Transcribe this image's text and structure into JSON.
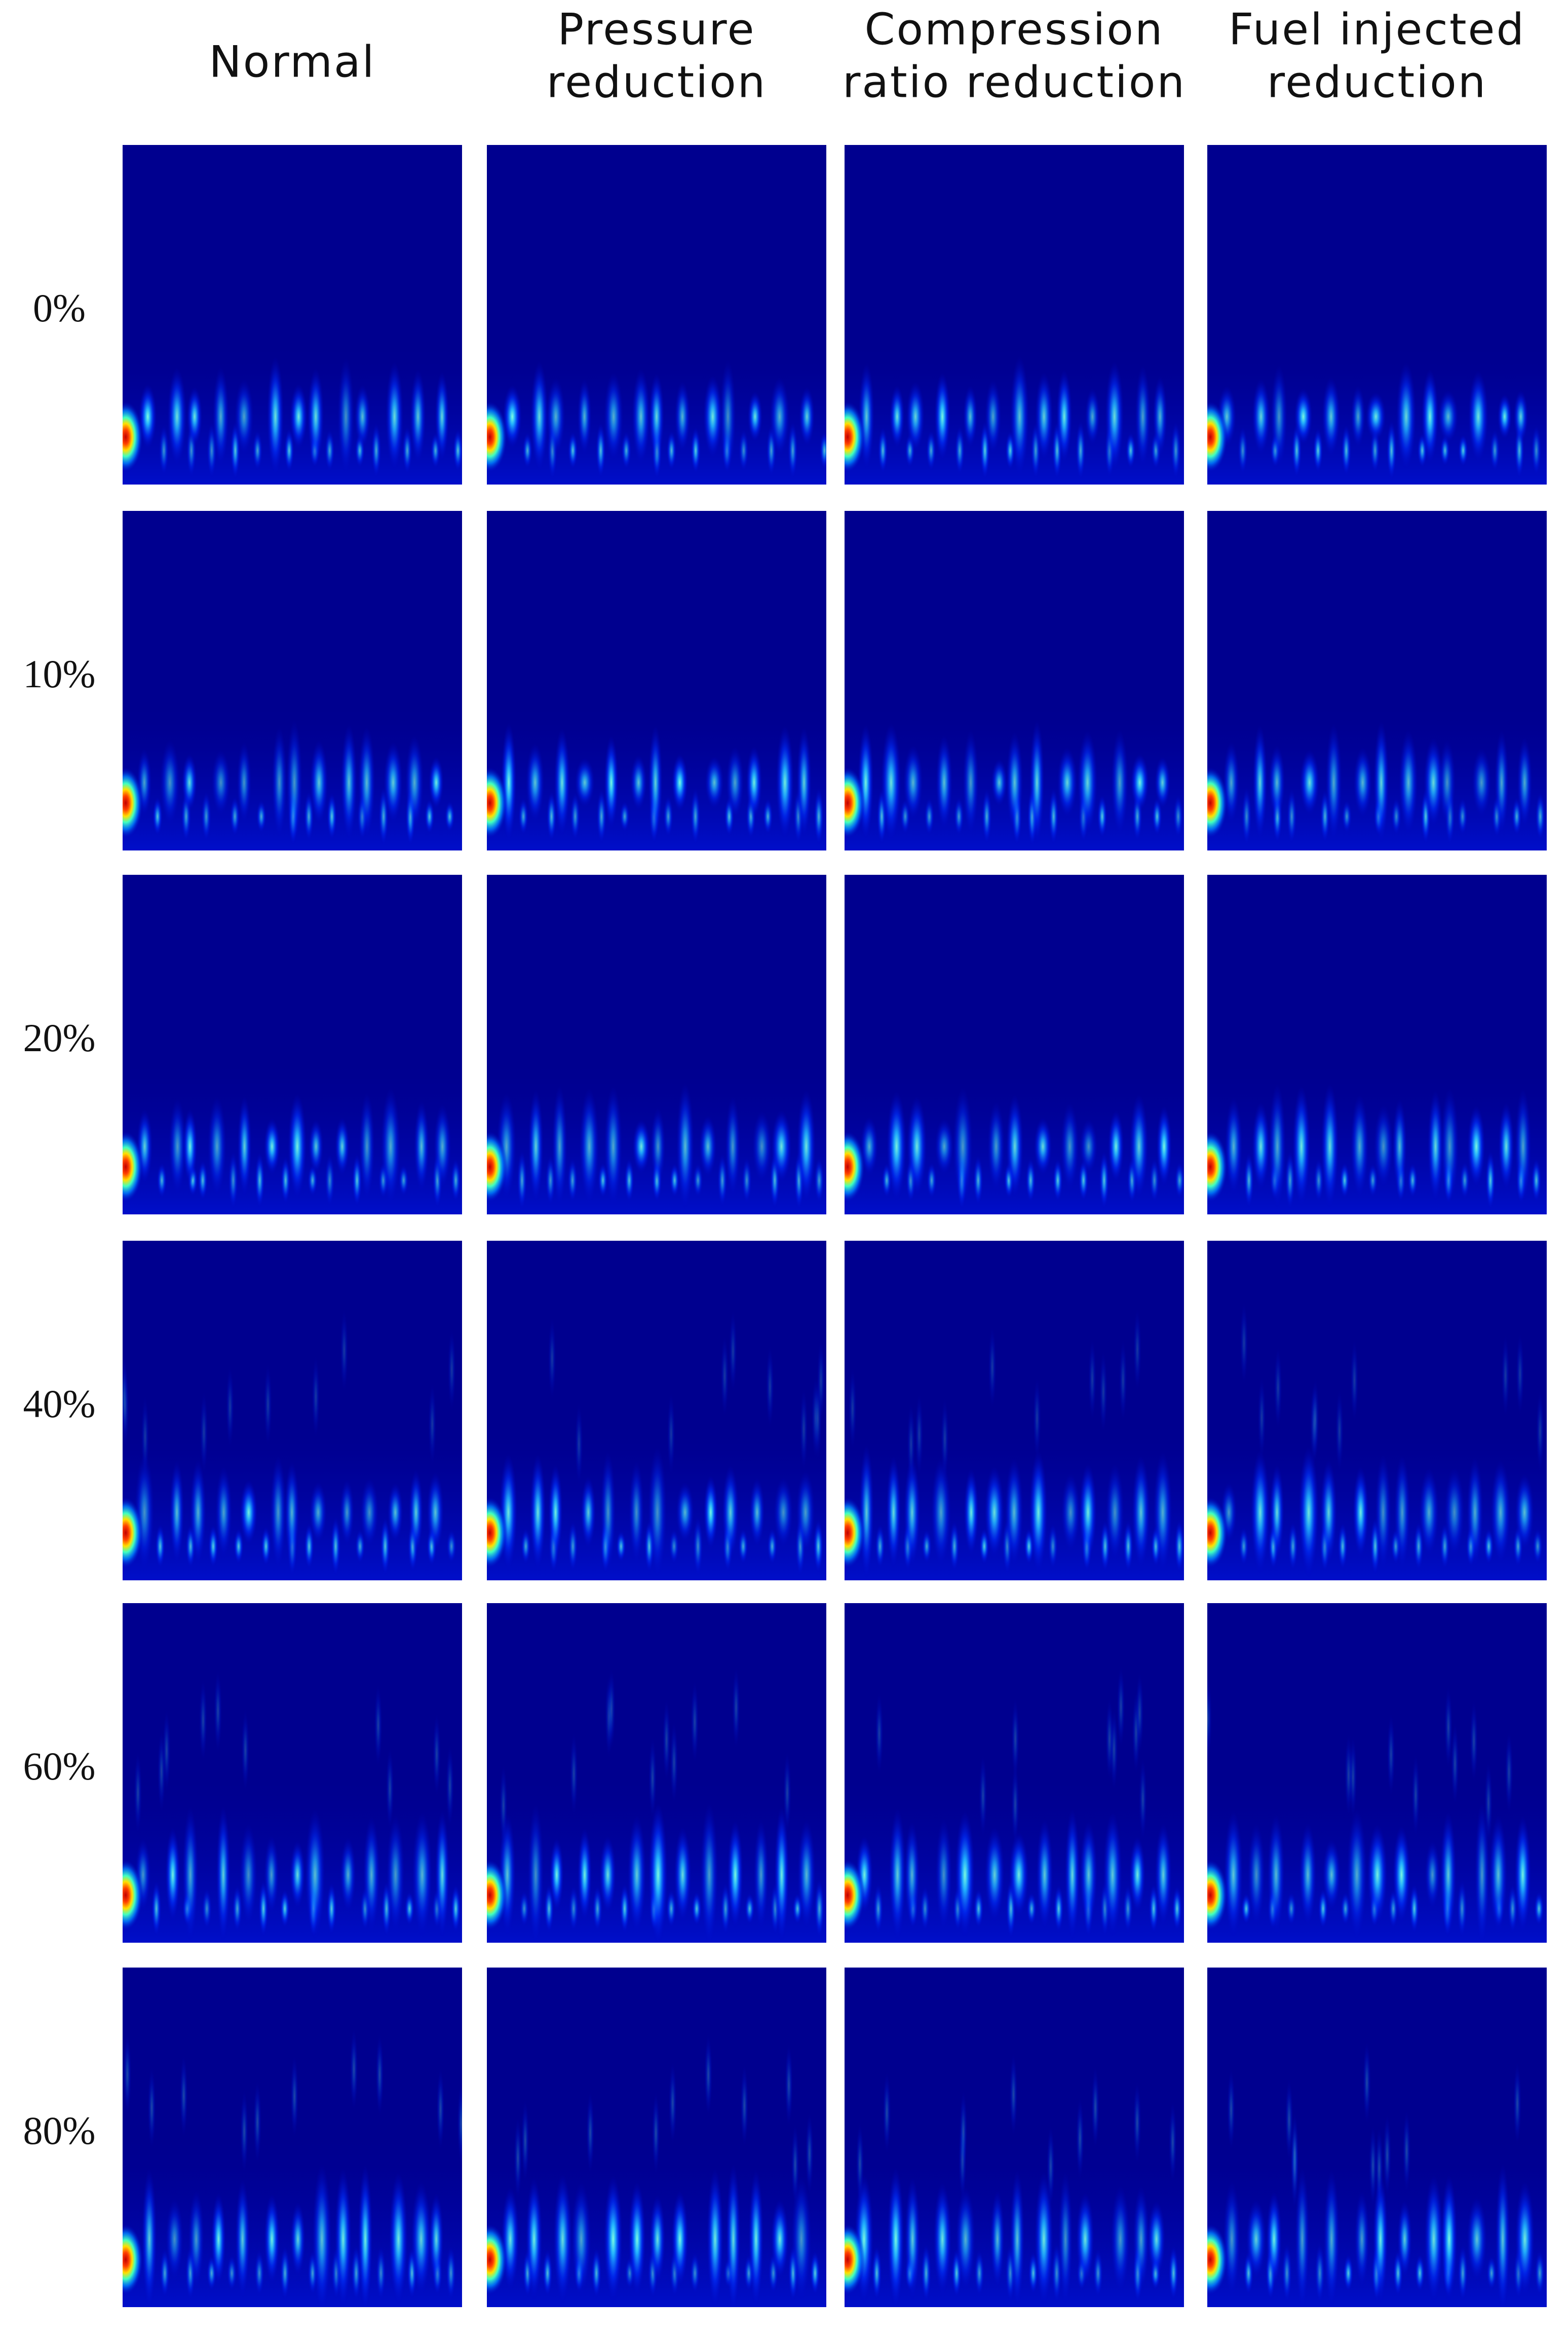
{
  "columns": [
    {
      "lines": [
        "Normal"
      ]
    },
    {
      "lines": [
        "Pressure",
        "reduction"
      ]
    },
    {
      "lines": [
        "Compression",
        "ratio reduction"
      ]
    },
    {
      "lines": [
        "Fuel injected",
        "reduction"
      ]
    }
  ],
  "rows": [
    "0%",
    "10%",
    "20%",
    "40%",
    "60%",
    "80%"
  ]
}
